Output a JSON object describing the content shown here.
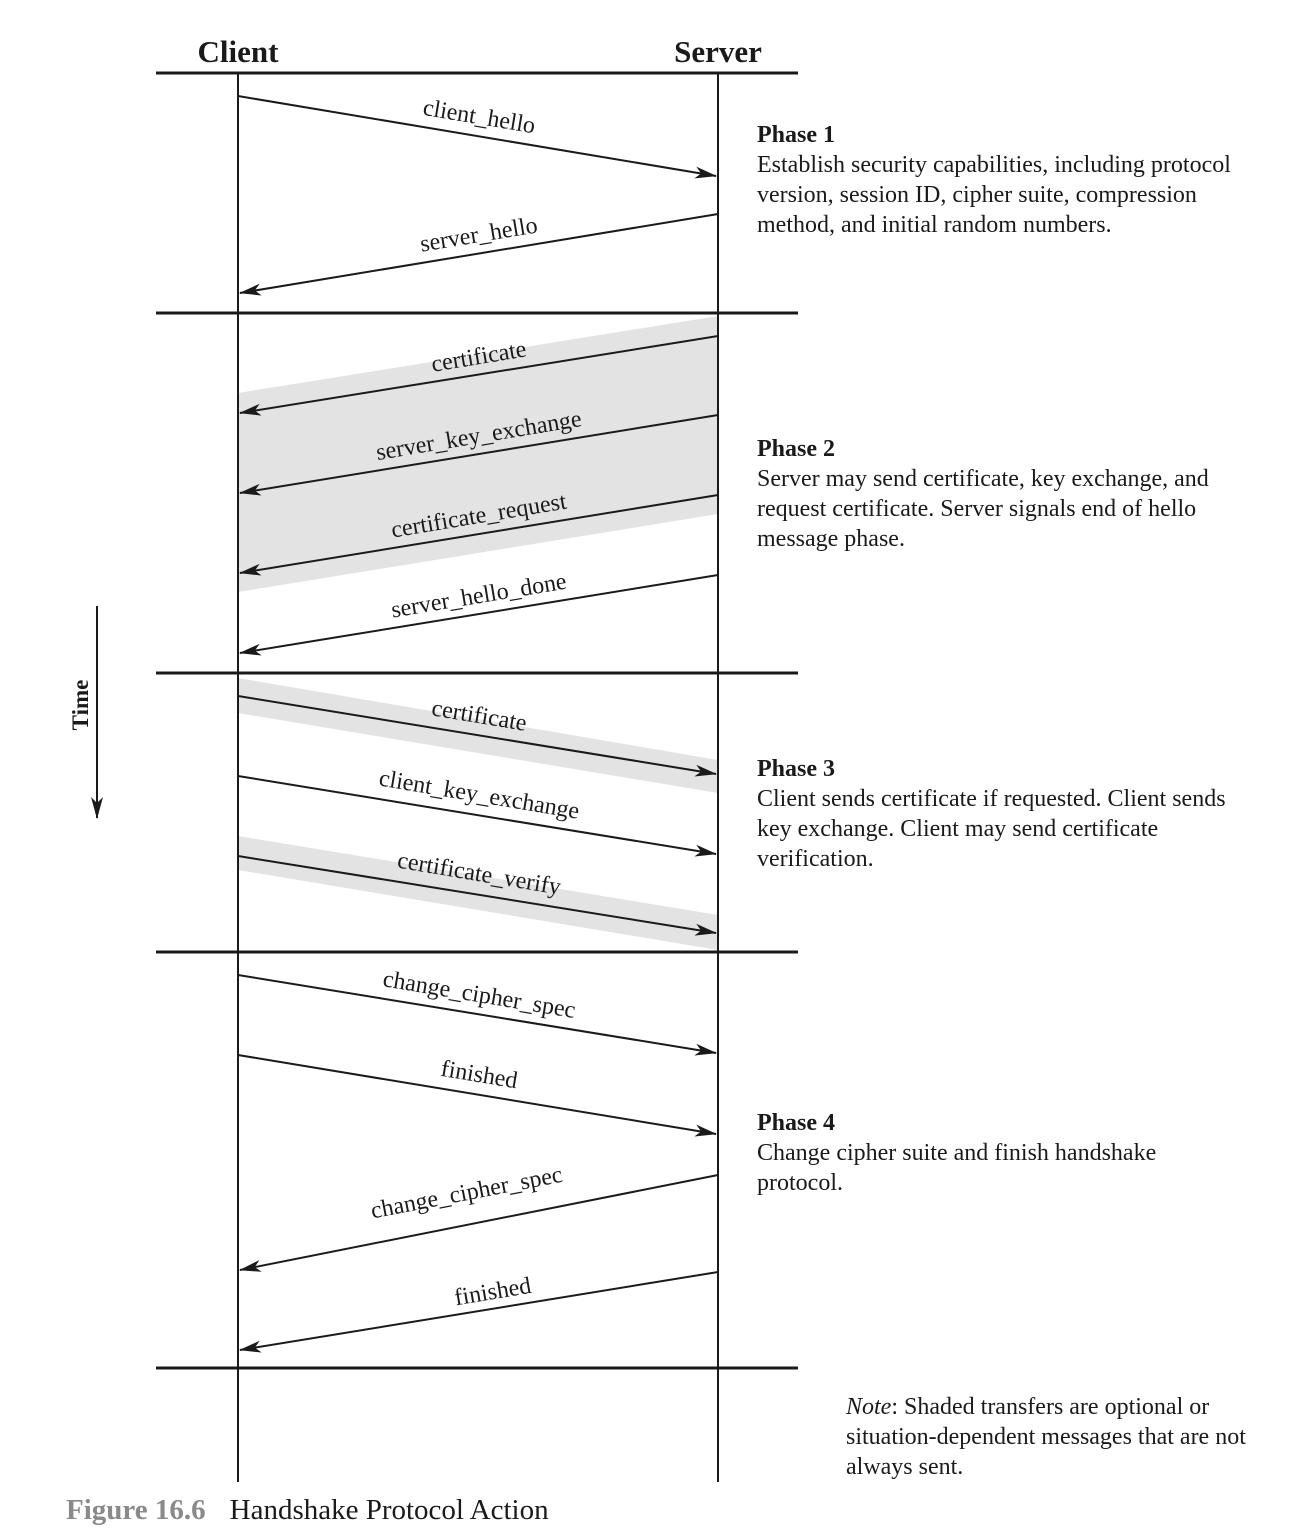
{
  "header": {
    "client": "Client",
    "server": "Server"
  },
  "time_label": "Time",
  "messages": {
    "client_hello": "client_hello",
    "server_hello": "server_hello",
    "certificate_s": "certificate",
    "server_key_exchange": "server_key_exchange",
    "certificate_request": "certificate_request",
    "server_hello_done": "server_hello_done",
    "certificate_c": "certificate",
    "client_key_exchange": "client_key_exchange",
    "certificate_verify": "certificate_verify",
    "change_cipher_spec_c": "change_cipher_spec",
    "finished_c": "finished",
    "change_cipher_spec_s": "change_cipher_spec",
    "finished_s": "finished"
  },
  "phases": [
    {
      "title": "Phase 1",
      "desc": "Establish security capabilities, including protocol version, session ID, cipher suite, compression method, and initial random numbers."
    },
    {
      "title": "Phase 2",
      "desc": "Server may send certificate, key exchange, and request certificate. Server signals end of hello message phase."
    },
    {
      "title": "Phase 3",
      "desc": "Client sends certificate if requested. Client sends key exchange. Client may send certificate verification."
    },
    {
      "title": "Phase 4",
      "desc": "Change cipher suite and finish handshake protocol."
    }
  ],
  "note": {
    "label": "Note",
    "text": ": Shaded transfers are optional or situation-dependent messages that are not always sent."
  },
  "caption": {
    "number": "Figure 16.6",
    "title": "Handshake Protocol Action"
  },
  "colors": {
    "shade": "#e3e3e3",
    "line": "#1a1a1a",
    "caption_number": "#8a8a8a"
  }
}
